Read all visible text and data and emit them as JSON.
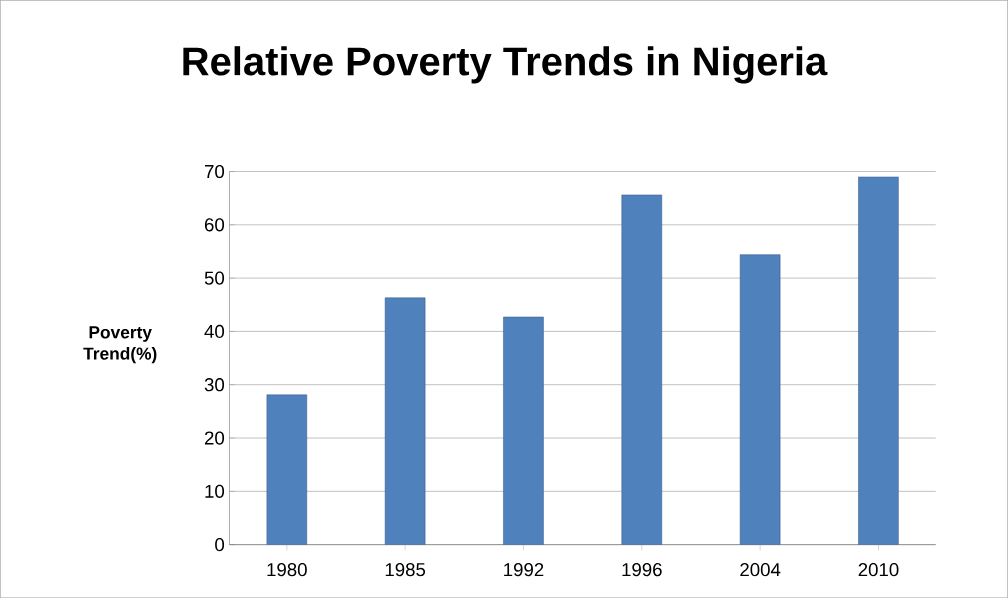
{
  "chart_data": {
    "type": "bar",
    "title": "Relative Poverty Trends in Nigeria",
    "ylabel": "Poverty Trend(%)",
    "categories": [
      "1980",
      "1985",
      "1992",
      "1996",
      "2004",
      "2010"
    ],
    "values": [
      28.1,
      46.3,
      42.7,
      65.6,
      54.4,
      69.0
    ],
    "color": "#4f81bd",
    "ylim": [
      0,
      70
    ],
    "yticks": [
      0,
      10,
      20,
      30,
      40,
      50,
      60,
      70
    ],
    "grid": "y"
  }
}
